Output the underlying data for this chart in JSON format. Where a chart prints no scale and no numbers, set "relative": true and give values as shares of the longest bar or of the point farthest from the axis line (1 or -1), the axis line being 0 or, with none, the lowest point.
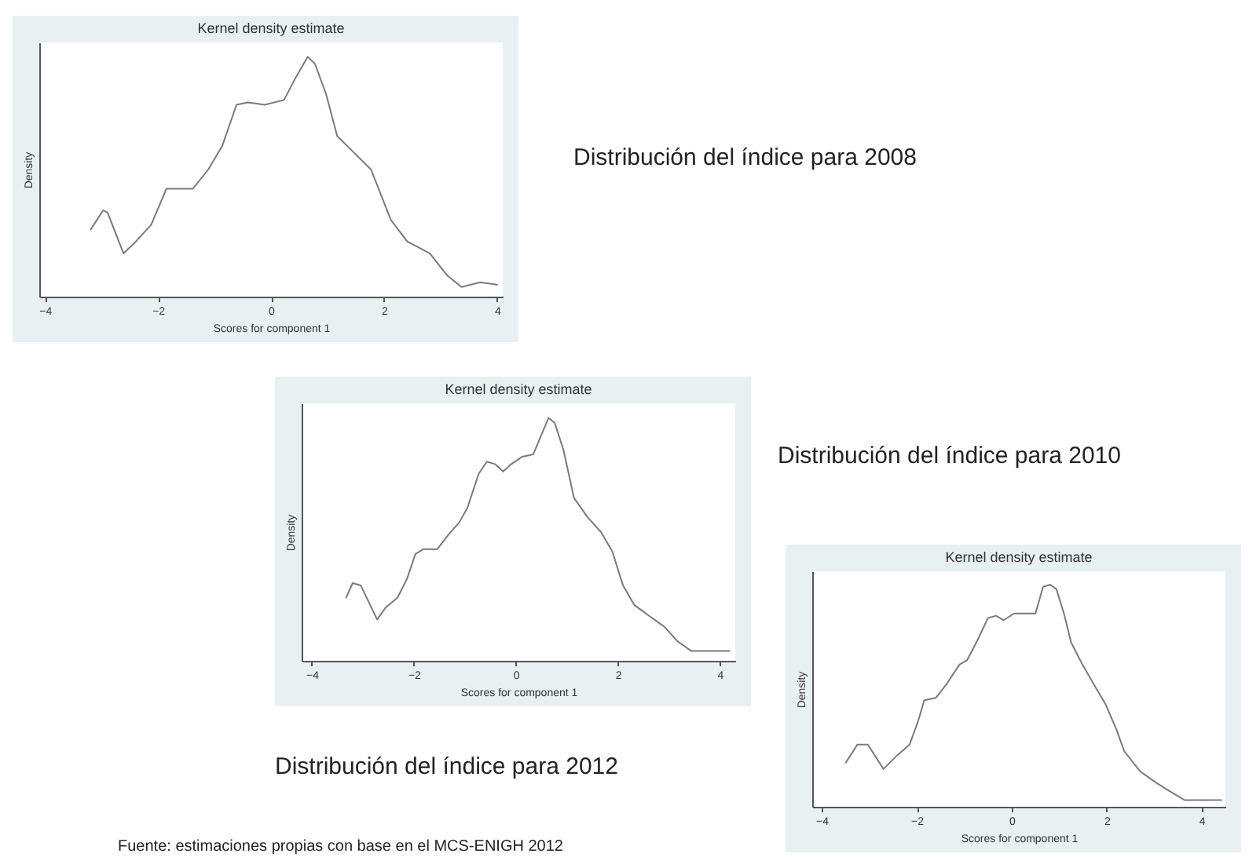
{
  "chart_data": [
    {
      "type": "line",
      "title": "Kernel density estimate",
      "xlabel": "Scores for component 1",
      "ylabel": "Density",
      "relative": true,
      "xlim": [
        -4.1,
        4.1
      ],
      "xticks": [
        -4,
        -2,
        0,
        2,
        4
      ],
      "x": [
        -3.19,
        -2.97,
        -2.89,
        -2.61,
        -2.39,
        -2.12,
        -1.85,
        -1.7,
        -1.38,
        -1.11,
        -0.86,
        -0.61,
        -0.41,
        -0.11,
        0.23,
        0.43,
        0.65,
        0.78,
        0.98,
        1.17,
        1.47,
        1.77,
        2.12,
        2.41,
        2.81,
        3.11,
        3.37,
        3.7,
        4.0
      ],
      "series": [
        {
          "color": "#7a7a7a",
          "values": [
            0.28,
            0.36,
            0.35,
            0.18,
            0.23,
            0.3,
            0.45,
            0.45,
            0.45,
            0.53,
            0.63,
            0.8,
            0.81,
            0.8,
            0.82,
            0.91,
            1.0,
            0.97,
            0.84,
            0.67,
            0.6,
            0.53,
            0.32,
            0.23,
            0.18,
            0.09,
            0.04,
            0.06,
            0.05
          ]
        }
      ],
      "annotations": [
        "Distribución del índice para 2008"
      ]
    },
    {
      "type": "line",
      "title": "Kernel density estimate",
      "xlabel": "Scores for component 1",
      "ylabel": "Density",
      "relative": true,
      "xlim": [
        -4.2,
        4.3
      ],
      "xticks": [
        -4,
        -2,
        0,
        2,
        4
      ],
      "x": [
        -3.33,
        -3.2,
        -3.04,
        -2.72,
        -2.55,
        -2.32,
        -2.13,
        -1.97,
        -1.81,
        -1.54,
        -1.32,
        -1.11,
        -0.95,
        -0.73,
        -0.57,
        -0.41,
        -0.25,
        -0.09,
        0.12,
        0.34,
        0.5,
        0.64,
        0.76,
        0.93,
        1.14,
        1.41,
        1.67,
        1.89,
        2.1,
        2.32,
        2.58,
        2.91,
        3.17,
        3.44,
        3.71,
        4.19
      ],
      "series": [
        {
          "color": "#7a7a7a",
          "values": [
            0.26,
            0.32,
            0.31,
            0.17,
            0.22,
            0.26,
            0.34,
            0.44,
            0.46,
            0.46,
            0.52,
            0.57,
            0.63,
            0.77,
            0.82,
            0.81,
            0.78,
            0.81,
            0.84,
            0.85,
            0.93,
            1.0,
            0.98,
            0.87,
            0.67,
            0.59,
            0.53,
            0.45,
            0.31,
            0.23,
            0.19,
            0.14,
            0.08,
            0.04,
            0.04,
            0.04
          ]
        }
      ],
      "annotations": [
        "Distribución del índice para 2010"
      ]
    },
    {
      "type": "line",
      "title": "Kernel density estimate",
      "xlabel": "Scores for component 1",
      "ylabel": "Density",
      "relative": true,
      "xlim": [
        -4.2,
        4.5
      ],
      "xticks": [
        -4,
        -2,
        0,
        2,
        4
      ],
      "x": [
        -3.49,
        -3.25,
        -3.03,
        -2.7,
        -2.42,
        -2.15,
        -1.98,
        -1.84,
        -1.6,
        -1.38,
        -1.1,
        -0.94,
        -0.72,
        -0.5,
        -0.33,
        -0.17,
        0.05,
        0.28,
        0.5,
        0.66,
        0.81,
        0.94,
        1.1,
        1.25,
        1.49,
        1.76,
        1.98,
        2.2,
        2.37,
        2.7,
        3.03,
        3.25,
        3.64,
        3.91,
        4.41
      ],
      "series": [
        {
          "color": "#7a7a7a",
          "values": [
            0.2,
            0.28,
            0.28,
            0.17,
            0.23,
            0.28,
            0.38,
            0.48,
            0.49,
            0.55,
            0.64,
            0.66,
            0.75,
            0.85,
            0.86,
            0.84,
            0.87,
            0.87,
            0.87,
            0.99,
            1.0,
            0.98,
            0.87,
            0.74,
            0.64,
            0.54,
            0.46,
            0.35,
            0.25,
            0.16,
            0.11,
            0.08,
            0.03,
            0.03,
            0.03
          ]
        }
      ],
      "annotations": [
        "Distribución del índice para 2012",
        "Fuente: estimaciones propias con base en el MCS-ENIGH 2012"
      ]
    }
  ]
}
